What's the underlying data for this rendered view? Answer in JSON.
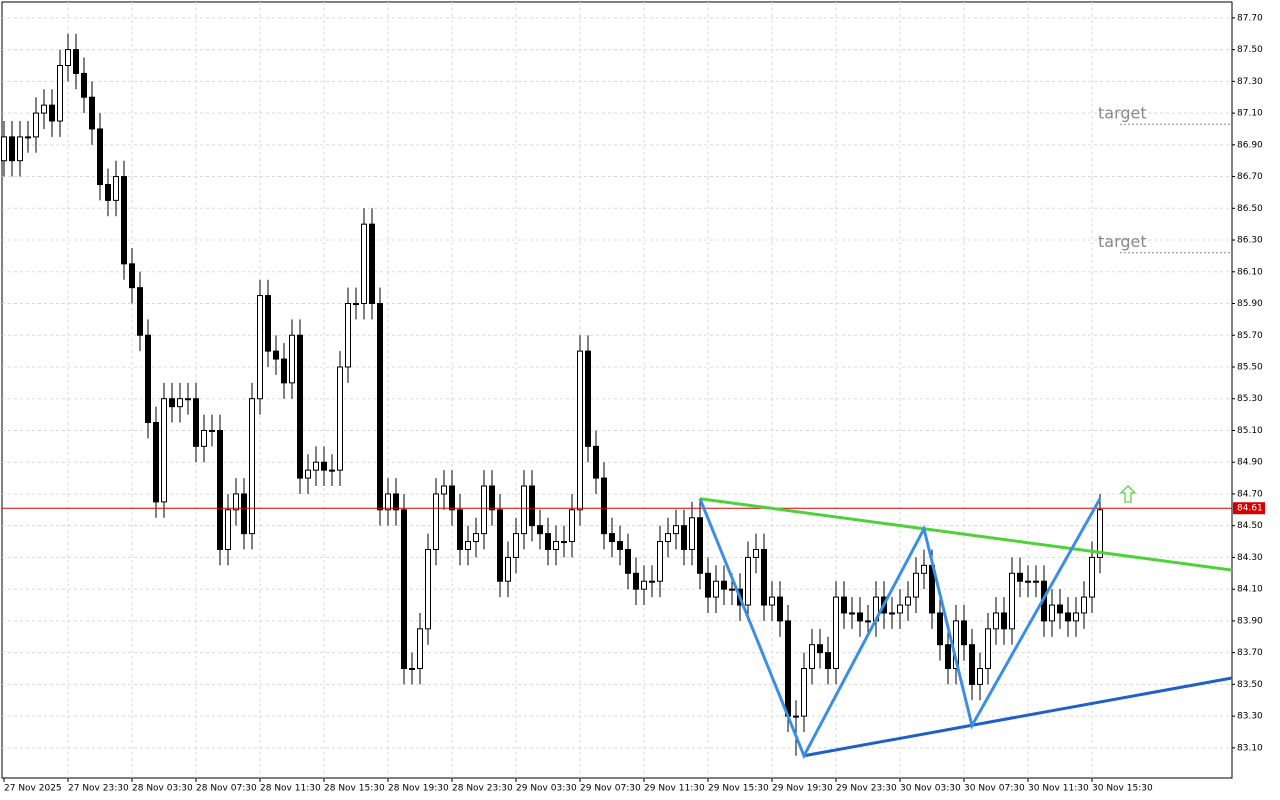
{
  "chart_data": {
    "type": "candlestick",
    "categories": [
      "27 Nov 2025",
      null,
      null,
      null,
      null,
      null,
      null,
      null,
      "27 Nov 23:30",
      null,
      null,
      null,
      null,
      null,
      null,
      null,
      "28 Nov 03:30",
      null,
      null,
      null,
      null,
      null,
      null,
      null,
      "28 Nov 07:30",
      null,
      null,
      null,
      null,
      null,
      null,
      null,
      "28 Nov 11:30",
      null,
      null,
      null,
      null,
      null,
      null,
      null,
      "28 Nov 15:30",
      null,
      null,
      null,
      null,
      null,
      null,
      null,
      "28 Nov 19:30",
      null,
      null,
      null,
      null,
      null,
      null,
      null,
      "28 Nov 23:30",
      null,
      null,
      null,
      null,
      null,
      null,
      null,
      "29 Nov 03:30",
      null,
      null,
      null,
      null,
      null,
      null,
      null,
      "29 Nov 07:30",
      null,
      null,
      null,
      null,
      null,
      null,
      null,
      "29 Nov 11:30",
      null,
      null,
      null,
      null,
      null,
      null,
      null,
      "29 Nov 15:30",
      null,
      null,
      null,
      null,
      null,
      null,
      null,
      "29 Nov 19:30",
      null,
      null,
      null,
      null,
      null,
      null,
      null,
      "29 Nov 23:30",
      null,
      null,
      null,
      null,
      null,
      null,
      null,
      "30 Nov 03:30",
      null,
      null,
      null,
      null,
      null,
      null,
      null,
      "30 Nov 07:30",
      null,
      null,
      null,
      null,
      null,
      null,
      null,
      "30 Nov 11:30",
      null,
      null,
      null,
      null,
      null,
      null,
      null,
      "30 Nov 15:30",
      null
    ],
    "open": [
      86.8,
      86.95,
      86.8,
      86.95,
      86.95,
      87.1,
      87.15,
      87.05,
      87.4,
      87.5,
      87.35,
      87.2,
      87.0,
      86.65,
      86.55,
      86.7,
      86.15,
      86.0,
      85.7,
      85.15,
      84.65,
      85.3,
      85.25,
      85.3,
      85.3,
      85.0,
      85.1,
      85.1,
      84.35,
      84.6,
      84.7,
      84.45,
      85.3,
      85.95,
      85.6,
      85.55,
      85.4,
      85.7,
      84.8,
      84.85,
      84.9,
      84.85,
      84.85,
      85.5,
      85.9,
      85.9,
      86.4,
      85.9,
      84.6,
      84.7,
      84.6,
      83.6,
      83.6,
      83.85,
      84.35,
      84.7,
      84.75,
      84.6,
      84.35,
      84.4,
      84.45,
      84.75,
      84.6,
      84.15,
      84.3,
      84.45,
      84.75,
      84.5,
      84.45,
      84.35,
      84.4,
      84.4,
      84.6,
      85.6,
      85.0,
      84.8,
      84.45,
      84.4,
      84.35,
      84.2,
      84.1,
      84.15,
      84.15,
      84.4,
      84.45,
      84.5,
      84.35,
      84.55,
      84.2,
      84.05,
      84.15,
      84.1,
      84.1,
      84.0,
      84.3,
      84.35,
      84.0,
      84.05,
      83.9,
      83.3,
      83.3,
      83.6,
      83.75,
      83.7,
      83.6,
      84.05,
      83.95,
      83.95,
      83.9,
      83.9,
      84.05,
      83.95,
      83.95,
      84.0,
      84.05,
      84.2,
      84.25,
      83.95,
      83.75,
      83.6,
      83.9,
      83.75,
      83.5,
      83.6,
      83.85,
      83.95,
      83.85,
      84.2,
      84.15,
      84.15,
      84.15,
      83.9,
      84.0,
      83.95,
      83.9,
      83.95,
      84.05,
      84.3
    ],
    "high": [
      87.05,
      87.05,
      87.05,
      87.05,
      87.2,
      87.25,
      87.25,
      87.5,
      87.6,
      87.6,
      87.45,
      87.3,
      87.1,
      86.75,
      86.8,
      86.8,
      86.25,
      86.1,
      85.8,
      85.25,
      85.4,
      85.4,
      85.4,
      85.4,
      85.4,
      85.2,
      85.2,
      85.2,
      84.7,
      84.8,
      84.8,
      85.4,
      86.05,
      86.05,
      85.7,
      85.65,
      85.8,
      85.8,
      84.95,
      85.0,
      85.0,
      84.95,
      85.6,
      86.0,
      86.0,
      86.5,
      86.5,
      86.0,
      84.8,
      84.8,
      84.7,
      83.7,
      83.95,
      84.45,
      84.8,
      84.85,
      84.85,
      84.7,
      84.5,
      84.55,
      84.85,
      84.85,
      84.7,
      84.4,
      84.55,
      84.85,
      84.85,
      84.6,
      84.55,
      84.5,
      84.5,
      84.7,
      85.7,
      85.7,
      85.1,
      84.9,
      84.55,
      84.5,
      84.45,
      84.3,
      84.25,
      84.25,
      84.5,
      84.55,
      84.6,
      84.6,
      84.65,
      84.65,
      84.3,
      84.25,
      84.25,
      84.2,
      84.2,
      84.4,
      84.45,
      84.45,
      84.15,
      84.15,
      84.0,
      83.4,
      83.7,
      83.85,
      83.85,
      83.8,
      84.15,
      84.15,
      84.05,
      84.05,
      84.0,
      84.15,
      84.15,
      84.05,
      84.1,
      84.15,
      84.3,
      84.35,
      84.35,
      84.05,
      83.85,
      84.0,
      84.0,
      83.85,
      83.7,
      83.95,
      84.05,
      84.05,
      84.3,
      84.3,
      84.25,
      84.25,
      84.25,
      84.1,
      84.1,
      84.05,
      84.05,
      84.15,
      84.4,
      84.7
    ],
    "low": [
      86.7,
      86.7,
      86.7,
      86.85,
      86.85,
      87.0,
      86.95,
      86.95,
      87.3,
      87.25,
      87.1,
      86.9,
      86.55,
      86.45,
      86.45,
      86.05,
      85.9,
      85.6,
      85.05,
      84.55,
      84.55,
      85.15,
      85.15,
      85.2,
      84.9,
      84.9,
      85.0,
      84.25,
      84.25,
      84.5,
      84.35,
      84.35,
      85.2,
      85.5,
      85.45,
      85.3,
      85.3,
      84.7,
      84.7,
      84.75,
      84.75,
      84.75,
      84.75,
      85.4,
      85.8,
      85.8,
      85.8,
      84.5,
      84.5,
      84.5,
      83.5,
      83.5,
      83.5,
      83.75,
      84.25,
      84.6,
      84.5,
      84.25,
      84.25,
      84.3,
      84.35,
      84.5,
      84.05,
      84.05,
      84.2,
      84.35,
      84.4,
      84.35,
      84.25,
      84.25,
      84.3,
      84.3,
      84.5,
      84.9,
      84.7,
      84.35,
      84.3,
      84.25,
      84.1,
      84.0,
      84.0,
      84.05,
      84.05,
      84.3,
      84.35,
      84.25,
      84.25,
      84.1,
      83.95,
      83.95,
      84.0,
      84.0,
      83.9,
      83.9,
      84.2,
      83.9,
      83.9,
      83.8,
      83.2,
      83.05,
      83.2,
      83.5,
      83.6,
      83.5,
      83.5,
      83.85,
      83.85,
      83.8,
      83.8,
      83.8,
      83.85,
      83.85,
      83.85,
      83.9,
      83.95,
      84.1,
      83.85,
      83.65,
      83.5,
      83.5,
      83.65,
      83.4,
      83.4,
      83.5,
      83.75,
      83.75,
      83.75,
      84.05,
      84.05,
      84.05,
      83.8,
      83.8,
      83.85,
      83.8,
      83.8,
      83.85,
      83.95,
      84.2
    ],
    "close": [
      86.95,
      86.8,
      86.95,
      86.95,
      87.1,
      87.15,
      87.05,
      87.4,
      87.5,
      87.35,
      87.2,
      87.0,
      86.65,
      86.55,
      86.7,
      86.15,
      86.0,
      85.7,
      85.15,
      84.65,
      85.3,
      85.25,
      85.3,
      85.3,
      85.0,
      85.1,
      85.1,
      84.35,
      84.6,
      84.7,
      84.45,
      85.3,
      85.95,
      85.6,
      85.55,
      85.4,
      85.7,
      84.8,
      84.85,
      84.9,
      84.85,
      84.85,
      85.5,
      85.9,
      85.9,
      86.4,
      85.9,
      84.6,
      84.7,
      84.6,
      83.6,
      83.6,
      83.85,
      84.35,
      84.7,
      84.75,
      84.6,
      84.35,
      84.4,
      84.45,
      84.75,
      84.6,
      84.15,
      84.3,
      84.45,
      84.75,
      84.5,
      84.45,
      84.35,
      84.4,
      84.4,
      84.6,
      85.6,
      85.0,
      84.8,
      84.45,
      84.4,
      84.35,
      84.2,
      84.1,
      84.15,
      84.15,
      84.4,
      84.45,
      84.5,
      84.35,
      84.55,
      84.2,
      84.05,
      84.15,
      84.1,
      84.1,
      84.0,
      84.3,
      84.35,
      84.0,
      84.05,
      83.9,
      83.3,
      83.3,
      83.6,
      83.75,
      83.7,
      83.6,
      84.05,
      83.95,
      83.95,
      83.9,
      83.9,
      84.05,
      83.95,
      83.95,
      84.0,
      84.05,
      84.2,
      84.25,
      83.95,
      83.75,
      83.6,
      83.9,
      83.75,
      83.5,
      83.6,
      83.85,
      83.95,
      83.85,
      84.2,
      84.15,
      84.15,
      84.15,
      83.9,
      84.0,
      83.95,
      83.9,
      83.95,
      84.05,
      84.3,
      84.6
    ],
    "colors": {
      "up": "#ffffff",
      "down": "#000000",
      "wick": "#000000"
    },
    "ylim": [
      82.91,
      87.8
    ],
    "yticks": [
      {
        "value": 87.7,
        "label": "87.70"
      },
      {
        "value": 87.5,
        "label": "87.50"
      },
      {
        "value": 87.3,
        "label": "87.30"
      },
      {
        "value": 87.1,
        "label": "87.10"
      },
      {
        "value": 86.9,
        "label": "86.90"
      },
      {
        "value": 86.7,
        "label": "86.70"
      },
      {
        "value": 86.5,
        "label": "86.50"
      },
      {
        "value": 86.3,
        "label": "86.30"
      },
      {
        "value": 86.1,
        "label": "86.10"
      },
      {
        "value": 85.9,
        "label": "85.90"
      },
      {
        "value": 85.7,
        "label": "85.70"
      },
      {
        "value": 85.5,
        "label": "85.50"
      },
      {
        "value": 85.3,
        "label": "85.30"
      },
      {
        "value": 85.1,
        "label": "85.10"
      },
      {
        "value": 84.9,
        "label": "84.90"
      },
      {
        "value": 84.7,
        "label": "84.70"
      },
      {
        "value": 84.5,
        "label": "84.50"
      },
      {
        "value": 84.3,
        "label": "84.30"
      },
      {
        "value": 84.1,
        "label": "84.10"
      },
      {
        "value": 83.9,
        "label": "83.90"
      },
      {
        "value": 83.7,
        "label": "83.70"
      },
      {
        "value": 83.5,
        "label": "83.50"
      },
      {
        "value": 83.3,
        "label": "83.30"
      },
      {
        "value": 83.1,
        "label": "83.10"
      }
    ],
    "grid": true,
    "price_line": {
      "value": 84.61,
      "label": "84.61",
      "color": "#d40000"
    },
    "trendlines": [
      {
        "color": "#4fd13a",
        "x": [
          87,
          153.5
        ],
        "y": [
          84.67,
          84.22
        ]
      },
      {
        "color": "#1f5fc8",
        "x": [
          100,
          153.5
        ],
        "y": [
          83.05,
          83.54
        ]
      }
    ],
    "zigzag": {
      "color": "#3a8ee6",
      "x": [
        87,
        100,
        115,
        121,
        137
      ],
      "y": [
        84.67,
        83.05,
        84.48,
        83.24,
        84.67
      ]
    },
    "targets": [
      {
        "label": "target",
        "value": 87.03
      },
      {
        "label": "target",
        "value": 86.22
      }
    ],
    "arrow": {
      "x": 140.5,
      "y": 84.7,
      "color": "#4fd13a"
    }
  }
}
